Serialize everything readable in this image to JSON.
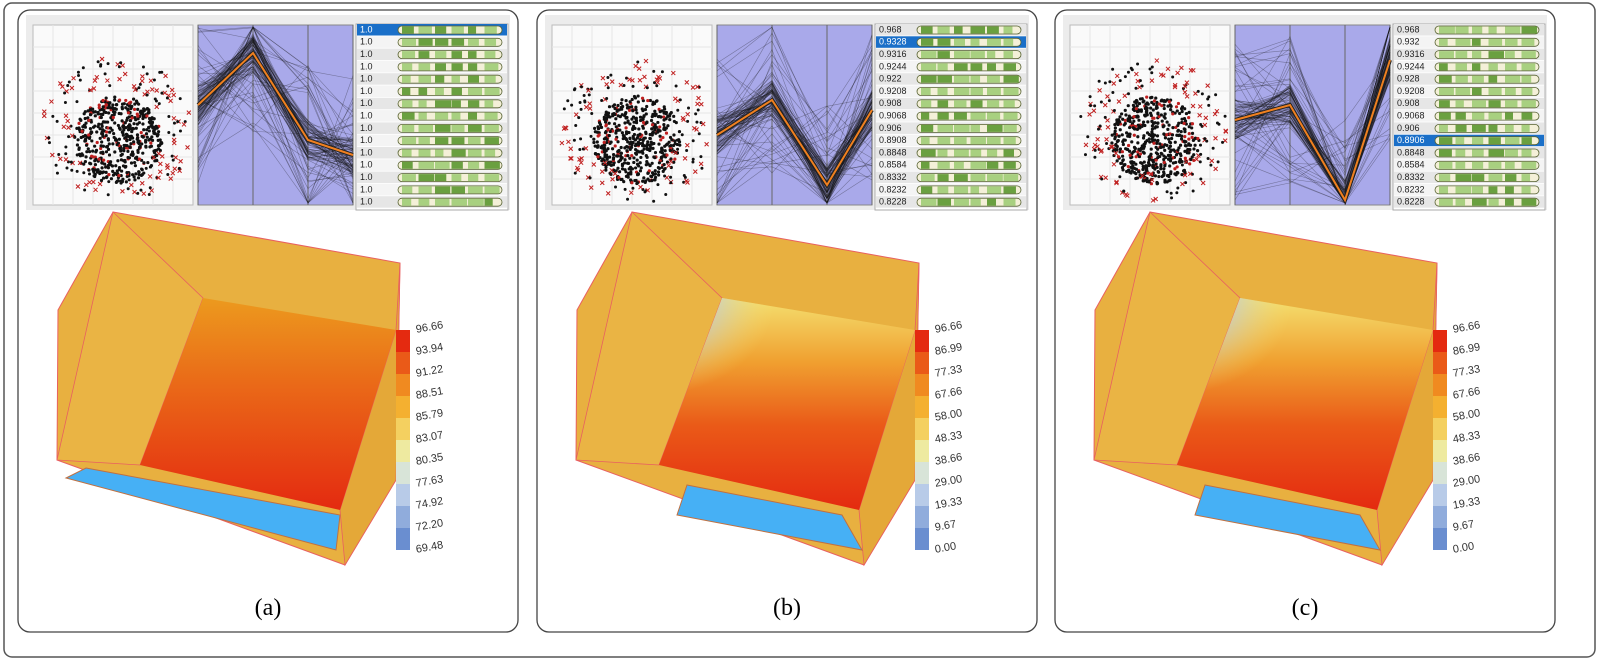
{
  "panels": [
    {
      "caption": "(a)",
      "list": {
        "rows": [
          "1.0",
          "1.0",
          "1.0",
          "1.0",
          "1.0",
          "1.0",
          "1.0",
          "1.0",
          "1.0",
          "1.0",
          "1.0",
          "1.0",
          "1.0",
          "1.0",
          "1.0"
        ],
        "selected": 0
      },
      "colorbar": {
        "labels": [
          "96.66",
          "93.94",
          "91.22",
          "88.51",
          "85.79",
          "83.07",
          "80.35",
          "77.63",
          "74.92",
          "72.20",
          "69.48"
        ]
      }
    },
    {
      "caption": "(b)",
      "list": {
        "rows": [
          "0.968",
          "0.9328",
          "0.9316",
          "0.9244",
          "0.922",
          "0.9208",
          "0.908",
          "0.9068",
          "0.906",
          "0.8908",
          "0.8848",
          "0.8584",
          "0.8332",
          "0.8232",
          "0.8228"
        ],
        "selected": 1
      },
      "colorbar": {
        "labels": [
          "96.66",
          "86.99",
          "77.33",
          "67.66",
          "58.00",
          "48.33",
          "38.66",
          "29.00",
          "19.33",
          "9.67",
          "0.00"
        ]
      }
    },
    {
      "caption": "(c)",
      "list": {
        "rows": [
          "0.968",
          "0.932",
          "0.9316",
          "0.9244",
          "0.928",
          "0.9208",
          "0.908",
          "0.9068",
          "0.906",
          "0.8906",
          "0.8848",
          "0.8584",
          "0.8332",
          "0.8232",
          "0.8228"
        ],
        "selected": 9
      },
      "colorbar": {
        "labels": [
          "96.66",
          "86.99",
          "77.33",
          "67.66",
          "58.00",
          "48.33",
          "38.66",
          "29.00",
          "19.33",
          "9.67",
          "0.00"
        ]
      }
    }
  ]
}
